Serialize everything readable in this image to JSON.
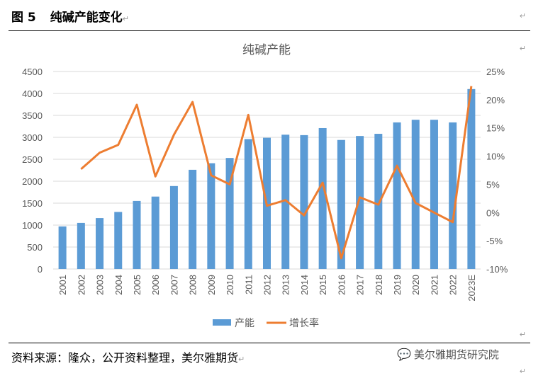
{
  "header": {
    "figure_no": "图 5",
    "title": "纯碱产能变化",
    "mark": "↵"
  },
  "footer": {
    "source": "资料来源：隆众，公开资料整理，美尔雅期货",
    "mark": "↵"
  },
  "watermark": {
    "text": "美尔雅期货研究院"
  },
  "colors": {
    "bar": "#5b9bd5",
    "line": "#ed7d31"
  },
  "chart_data": {
    "type": "bar+line",
    "title": "纯碱产能",
    "categories": [
      "2001",
      "2002",
      "2003",
      "2004",
      "2005",
      "2006",
      "2007",
      "2008",
      "2009",
      "2010",
      "2011",
      "2012",
      "2013",
      "2014",
      "2015",
      "2016",
      "2017",
      "2018",
      "2019",
      "2020",
      "2021",
      "2022",
      "2023E"
    ],
    "series": [
      {
        "name": "产能",
        "type": "bar",
        "axis": "left",
        "values": [
          970,
          1050,
          1160,
          1300,
          1550,
          1650,
          1890,
          2260,
          2410,
          2530,
          2960,
          2990,
          3060,
          3050,
          3210,
          2940,
          3030,
          3080,
          3340,
          3400,
          3400,
          3340,
          4100
        ]
      },
      {
        "name": "增长率",
        "type": "line",
        "axis": "right",
        "values": [
          null,
          7.7,
          10.6,
          12.0,
          19.1,
          6.4,
          13.8,
          19.6,
          6.6,
          5.0,
          17.3,
          1.2,
          2.2,
          -0.5,
          5.3,
          -8.1,
          2.7,
          1.4,
          8.3,
          1.7,
          0.0,
          -1.7,
          22.4
        ]
      }
    ],
    "yleft": {
      "ylim": [
        0,
        4500
      ],
      "ticks": [
        "0",
        "500",
        "1000",
        "1500",
        "2000",
        "2500",
        "3000",
        "3500",
        "4000",
        "4500"
      ]
    },
    "yright": {
      "ylim": [
        -10,
        25
      ],
      "ticks": [
        "-10%",
        "-5%",
        "0%",
        "5%",
        "10%",
        "15%",
        "20%",
        "25%"
      ]
    },
    "legend": "bottom",
    "grid": true
  }
}
